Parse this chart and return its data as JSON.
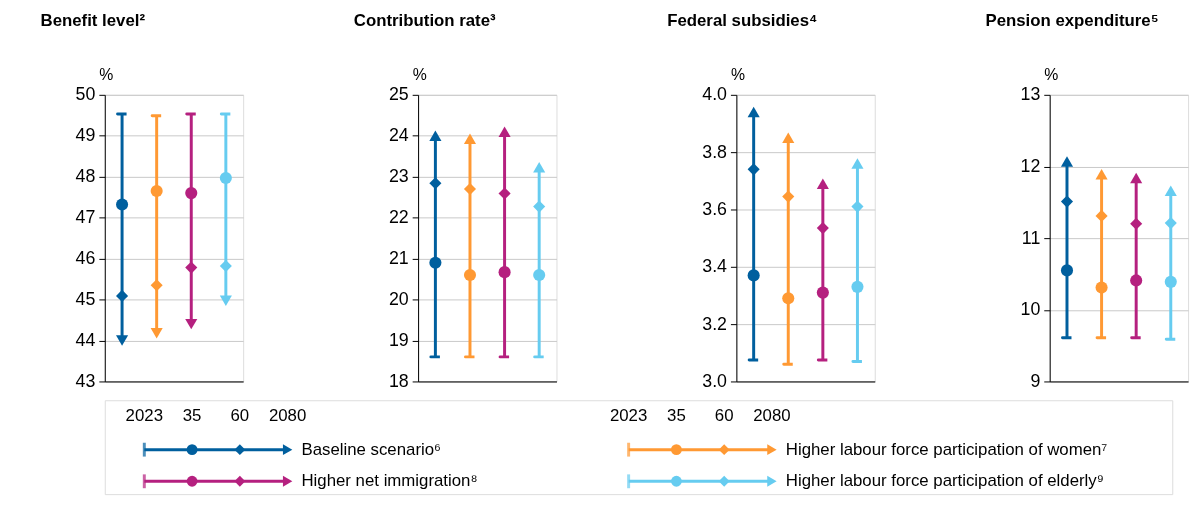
{
  "chart_data": [
    {
      "type": "scatter",
      "title": "Benefit level²",
      "ylabel": "%",
      "categories": [
        null,
        null,
        null,
        null
      ],
      "ylim": [
        43,
        50
      ],
      "yticks": [
        43,
        44,
        45,
        46,
        47,
        48,
        49,
        50
      ],
      "grid": "y",
      "legend": "bottom",
      "annotations": [
        "2023",
        "Baseline scenario⁶",
        "Higher labour force participation of women⁷",
        "Higher net immigration⁸",
        "Higher labour force participation of elderly⁹"
      ],
      "series": [
        {
          "name": "35",
          "marker": "circle",
          "colors": [
            "#005f9e",
            "#ff9933",
            "#b5207f",
            "#66ccf0"
          ],
          "values": [
            47.32,
            47.65,
            47.6,
            47.97
          ]
        },
        {
          "name": "60",
          "marker": "diamond",
          "colors": [
            "#005f9e",
            "#ff9933",
            "#b5207f",
            "#66ccf0"
          ],
          "values": [
            45.09,
            45.35,
            45.78,
            45.82
          ]
        },
        {
          "name": "2080",
          "marker": "triangle",
          "colors": [
            "#005f9e",
            "#ff9933",
            "#b5207f",
            "#66ccf0"
          ],
          "values": [
            44.0,
            44.18,
            44.4,
            44.97
          ],
          "errors": [
            [
              44.0,
              49.53
            ],
            [
              44.18,
              49.49
            ],
            [
              44.4,
              49.53
            ],
            [
              44.97,
              49.53
            ]
          ]
        }
      ]
    },
    {
      "type": "scatter",
      "title": "Contribution rate³",
      "ylabel": "%",
      "categories": [
        null,
        null,
        null,
        null
      ],
      "ylim": [
        18,
        25
      ],
      "yticks": [
        18,
        19,
        20,
        21,
        22,
        23,
        24,
        25
      ],
      "grid": "y",
      "series": [
        {
          "marker": "circle",
          "colors": [
            "#005f9e",
            "#ff9933",
            "#b5207f",
            "#66ccf0"
          ],
          "values": [
            20.9,
            20.6,
            20.67,
            20.6
          ]
        },
        {
          "marker": "diamond",
          "colors": [
            "#005f9e",
            "#ff9933",
            "#b5207f",
            "#66ccf0"
          ],
          "values": [
            22.84,
            22.7,
            22.59,
            22.27
          ]
        },
        {
          "marker": "triangle",
          "colors": [
            "#005f9e",
            "#ff9933",
            "#b5207f",
            "#66ccf0"
          ],
          "values": [
            24.0,
            23.93,
            24.1,
            23.23
          ],
          "errors": [
            [
              18.6,
              24.0
            ],
            [
              18.6,
              23.93
            ],
            [
              18.6,
              24.1
            ],
            [
              18.6,
              23.23
            ]
          ]
        }
      ]
    },
    {
      "type": "scatter",
      "title": "Federal subsidies⁴",
      "ylabel": "%",
      "categories": [
        null,
        null,
        null,
        null
      ],
      "ylim": [
        3.0,
        4.0
      ],
      "yticks": [
        {
          "value": 3.0,
          "label": "3.0"
        },
        3.2,
        3.4,
        3.6,
        3.8,
        {
          "value": 4.0,
          "label": "4.0"
        }
      ],
      "grid": "y",
      "series": [
        {
          "marker": "circle",
          "colors": [
            "#005f9e",
            "#ff9933",
            "#b5207f",
            "#66ccf0"
          ],
          "values": [
            3.37,
            3.29,
            3.31,
            3.33
          ]
        },
        {
          "marker": "diamond",
          "colors": [
            "#005f9e",
            "#ff9933",
            "#b5207f",
            "#66ccf0"
          ],
          "values": [
            3.74,
            3.645,
            3.535,
            3.61
          ]
        },
        {
          "marker": "triangle",
          "colors": [
            "#005f9e",
            "#ff9933",
            "#b5207f",
            "#66ccf0"
          ],
          "values": [
            3.94,
            3.85,
            3.69,
            3.76
          ],
          "errors": [
            [
              3.075,
              3.94
            ],
            [
              3.06,
              3.85
            ],
            [
              3.075,
              3.69
            ],
            [
              3.07,
              3.76
            ]
          ]
        }
      ]
    },
    {
      "type": "scatter",
      "title": "Pension expenditure⁵",
      "ylabel": "%",
      "categories": [
        null,
        null,
        null,
        null
      ],
      "ylim": [
        9,
        13
      ],
      "yticks": [
        9,
        10,
        11,
        12,
        13
      ],
      "grid": "y",
      "series": [
        {
          "marker": "circle",
          "colors": [
            "#005f9e",
            "#ff9933",
            "#b5207f",
            "#66ccf0"
          ],
          "values": [
            10.55,
            10.31,
            10.41,
            10.39
          ]
        },
        {
          "marker": "diamond",
          "colors": [
            "#005f9e",
            "#ff9933",
            "#b5207f",
            "#66ccf0"
          ],
          "values": [
            11.51,
            11.31,
            11.2,
            11.21
          ]
        },
        {
          "marker": "triangle",
          "colors": [
            "#005f9e",
            "#ff9933",
            "#b5207f",
            "#66ccf0"
          ],
          "values": [
            12.07,
            11.89,
            11.84,
            11.66
          ],
          "errors": [
            [
              9.61,
              12.07
            ],
            [
              9.61,
              11.89
            ],
            [
              9.61,
              11.84
            ],
            [
              9.59,
              11.66
            ]
          ]
        }
      ]
    }
  ]
}
